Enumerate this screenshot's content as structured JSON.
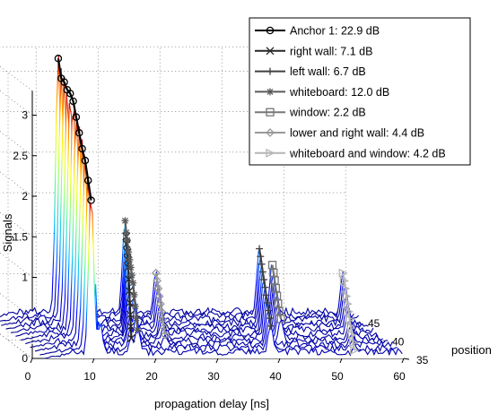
{
  "chart_data": {
    "type": "line",
    "subtype": "3d-waterfall",
    "title": "",
    "xlabel": "propagation delay [ns]",
    "ylabel": "position",
    "zlabel": "Signals",
    "xlim": [
      0,
      60
    ],
    "ylim": [
      35,
      47
    ],
    "zlim": [
      0,
      3.3
    ],
    "x_ticks": [
      "0",
      "10",
      "20",
      "30",
      "40",
      "50",
      "60"
    ],
    "y_ticks": [
      "35",
      "40",
      "45"
    ],
    "z_ticks": [
      "0",
      "0.5",
      "1",
      "1.5",
      "2",
      "2.5",
      "3"
    ],
    "grid": true,
    "legend_position": "top-right",
    "waterfall": {
      "positions": [
        35,
        36,
        37,
        38,
        39,
        40,
        41,
        42,
        43,
        44,
        45,
        46
      ],
      "main_peak_delay": [
        9.5,
        9.8,
        10.1,
        10.4,
        10.7,
        11.0,
        11.3,
        11.6,
        11.9,
        12.2,
        12.5,
        12.8
      ],
      "main_peak_amplitude": [
        1.95,
        2.15,
        2.35,
        2.45,
        2.6,
        2.75,
        2.9,
        2.95,
        2.95,
        3.0,
        3.0,
        3.2
      ],
      "noise_level": 0.1
    },
    "series": [
      {
        "name": "Anchor 1: 22.9 dB",
        "color": "#000000",
        "marker": "circle",
        "points": [
          [
            9.5,
            35,
            1.95
          ],
          [
            9.8,
            36,
            2.15
          ],
          [
            10.1,
            37,
            2.35
          ],
          [
            10.4,
            38,
            2.45
          ],
          [
            10.7,
            39,
            2.6
          ],
          [
            11.0,
            40,
            2.75
          ],
          [
            11.3,
            41,
            2.9
          ],
          [
            11.6,
            42,
            2.95
          ],
          [
            11.9,
            43,
            2.95
          ],
          [
            12.2,
            44,
            3.0
          ],
          [
            12.5,
            45,
            3.0
          ],
          [
            12.8,
            46,
            3.2
          ]
        ]
      },
      {
        "name": "right wall: 7.1 dB",
        "color": "#262626",
        "marker": "x",
        "points": [
          [
            16.0,
            35,
            0.25
          ],
          [
            16.7,
            36,
            0.35
          ],
          [
            17.4,
            37,
            0.45
          ],
          [
            18.1,
            38,
            0.55
          ],
          [
            18.8,
            39,
            0.65
          ],
          [
            19.5,
            40,
            0.75
          ],
          [
            20.2,
            41,
            0.85
          ],
          [
            20.9,
            42,
            0.9
          ],
          [
            21.6,
            43,
            0.95
          ],
          [
            22.3,
            44,
            1.0
          ],
          [
            23.0,
            45,
            1.05
          ]
        ]
      },
      {
        "name": "left wall: 6.7 dB",
        "color": "#404040",
        "marker": "plus",
        "points": [
          [
            38.5,
            35,
            0.4
          ],
          [
            39.1,
            36,
            0.45
          ],
          [
            39.7,
            37,
            0.5
          ],
          [
            40.3,
            38,
            0.55
          ],
          [
            40.9,
            39,
            0.6
          ],
          [
            41.5,
            40,
            0.65
          ],
          [
            42.1,
            41,
            0.7
          ],
          [
            42.7,
            42,
            0.75
          ],
          [
            43.3,
            43,
            0.8
          ],
          [
            43.9,
            44,
            0.85
          ],
          [
            44.5,
            45,
            0.9
          ]
        ]
      },
      {
        "name": "whiteboard: 12.0 dB",
        "color": "#5a5a5a",
        "marker": "star",
        "points": [
          [
            17.0,
            35,
            0.35
          ],
          [
            17.6,
            36,
            0.45
          ],
          [
            18.2,
            37,
            0.55
          ],
          [
            18.8,
            38,
            0.65
          ],
          [
            19.4,
            39,
            0.75
          ],
          [
            20.0,
            40,
            0.8
          ],
          [
            20.6,
            41,
            0.85
          ],
          [
            21.2,
            42,
            0.9
          ],
          [
            21.8,
            43,
            0.95
          ],
          [
            22.4,
            44,
            1.05
          ],
          [
            23.0,
            45,
            1.1
          ],
          [
            23.6,
            46,
            1.2
          ]
        ]
      },
      {
        "name": "window: 2.2 dB",
        "color": "#777777",
        "marker": "square",
        "points": [
          [
            42.5,
            38,
            0.35
          ],
          [
            43.0,
            39,
            0.4
          ],
          [
            43.6,
            40,
            0.45
          ],
          [
            44.2,
            41,
            0.5
          ],
          [
            44.8,
            42,
            0.55
          ],
          [
            45.4,
            43,
            0.6
          ],
          [
            46.0,
            44,
            0.65
          ],
          [
            46.6,
            45,
            0.7
          ]
        ]
      },
      {
        "name": "lower and right wall: 4.4 dB",
        "color": "#999999",
        "marker": "diamond",
        "points": [
          [
            23.0,
            37,
            0.2
          ],
          [
            23.6,
            38,
            0.25
          ],
          [
            24.2,
            39,
            0.3
          ],
          [
            24.8,
            40,
            0.35
          ],
          [
            25.4,
            41,
            0.4
          ],
          [
            26.0,
            42,
            0.45
          ],
          [
            26.6,
            43,
            0.5
          ],
          [
            27.2,
            44,
            0.55
          ],
          [
            27.8,
            45,
            0.6
          ]
        ]
      },
      {
        "name": "whiteboard and window: 4.2 dB",
        "color": "#b5b5b5",
        "marker": "triangle",
        "points": [
          [
            52.0,
            35,
            0.1
          ],
          [
            52.6,
            36,
            0.15
          ],
          [
            53.2,
            37,
            0.2
          ],
          [
            53.8,
            38,
            0.25
          ],
          [
            54.4,
            39,
            0.3
          ],
          [
            55.0,
            40,
            0.35
          ],
          [
            55.6,
            41,
            0.4
          ],
          [
            56.2,
            42,
            0.45
          ],
          [
            56.8,
            43,
            0.5
          ],
          [
            57.4,
            44,
            0.55
          ],
          [
            58.0,
            45,
            0.6
          ]
        ]
      }
    ]
  }
}
